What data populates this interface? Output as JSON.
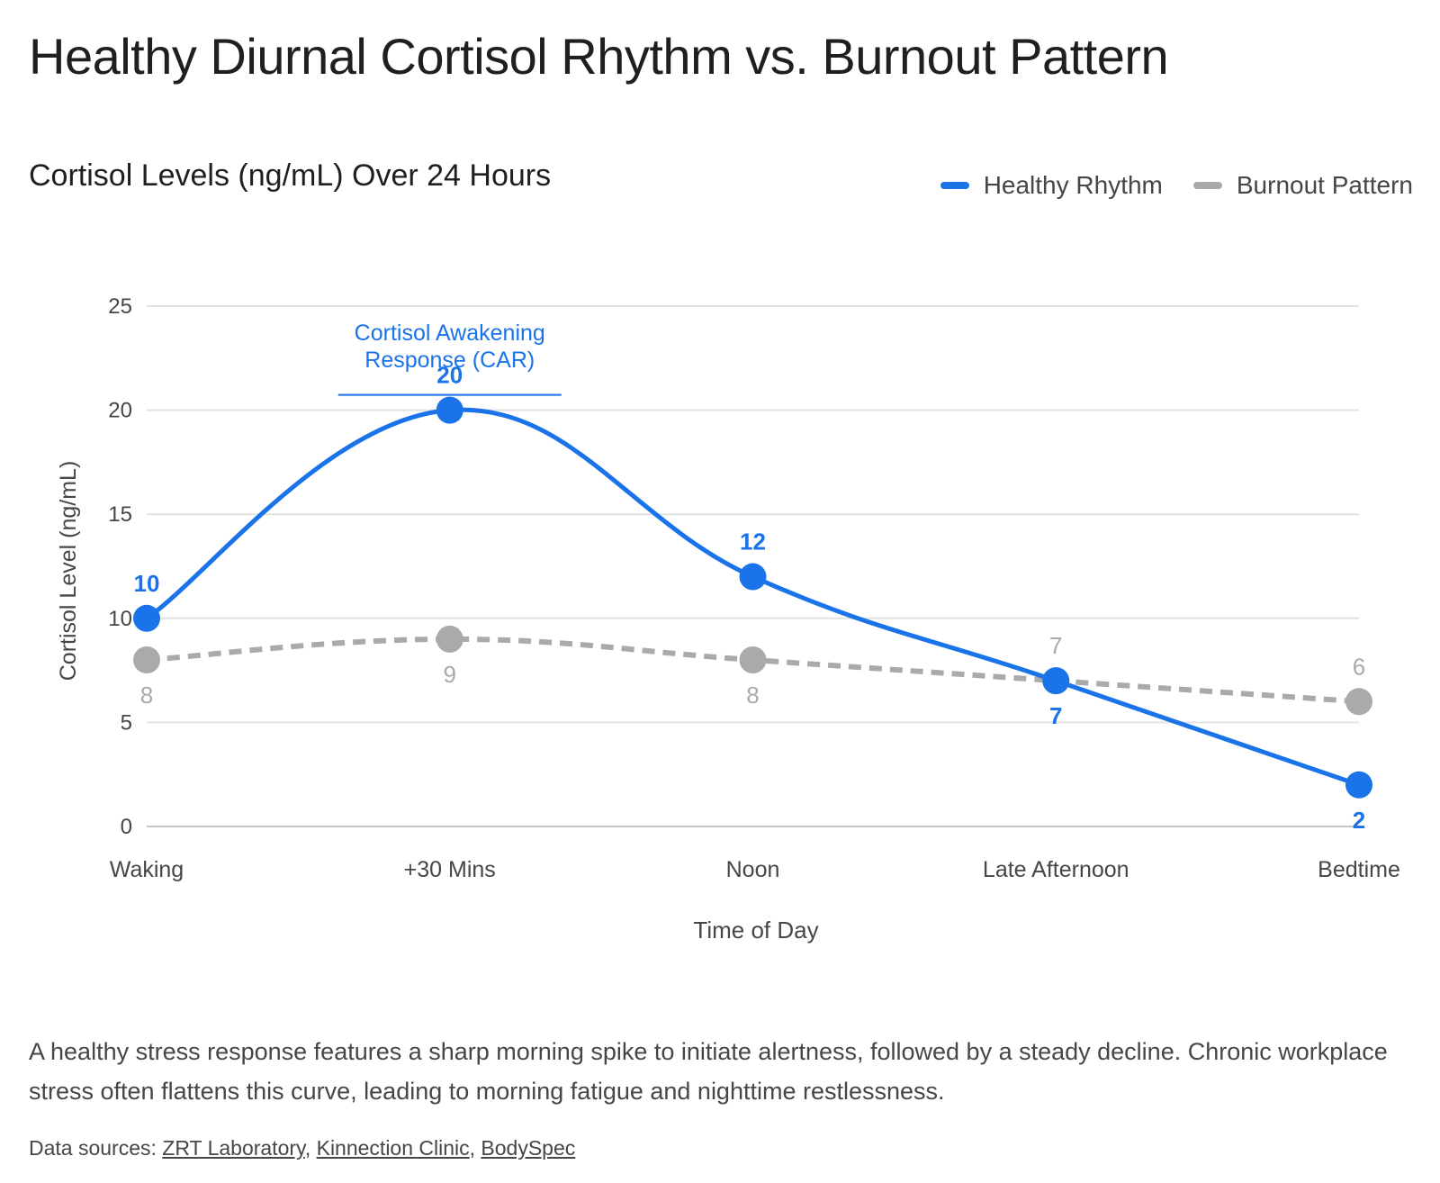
{
  "title": "Healthy Diurnal Cortisol Rhythm vs. Burnout Pattern",
  "caption": "A healthy stress response features a sharp morning spike to initiate alertness, followed by a steady decline. Chronic workplace stress often flattens this curve, leading to morning fatigue and nighttime restlessness.",
  "sources": {
    "prefix": "Data sources: ",
    "links": [
      "ZRT Laboratory",
      "Kinnection Clinic",
      "BodySpec"
    ],
    "separator": ", "
  },
  "chart_data": {
    "type": "line",
    "title": "Cortisol Levels (ng/mL) Over 24 Hours",
    "xlabel": "Time of Day",
    "ylabel": "Cortisol Level (ng/mL)",
    "categories": [
      "Waking",
      "+30 Mins",
      "Noon",
      "Late Afternoon",
      "Bedtime"
    ],
    "ylim": [
      0,
      25
    ],
    "yticks": [
      0,
      5,
      10,
      15,
      20,
      25
    ],
    "grid": true,
    "legend_position": "top-right",
    "series": [
      {
        "name": "Healthy Rhythm",
        "values": [
          10,
          20,
          12,
          7,
          2
        ],
        "color": "#1a73e8",
        "style": "solid",
        "smooth": true
      },
      {
        "name": "Burnout Pattern",
        "values": [
          8,
          9,
          8,
          7,
          6
        ],
        "color": "#aaaaaa",
        "style": "dashed",
        "smooth": true
      }
    ],
    "annotations": [
      {
        "text_lines": [
          "Cortisol Awakening",
          "Response (CAR)"
        ],
        "category": "+30 Mins",
        "color": "#1a73e8"
      }
    ]
  }
}
